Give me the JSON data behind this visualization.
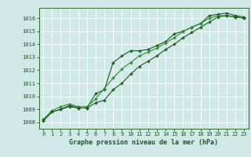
{
  "x": [
    0,
    1,
    2,
    3,
    4,
    5,
    6,
    7,
    8,
    9,
    10,
    11,
    12,
    13,
    14,
    15,
    16,
    17,
    18,
    19,
    20,
    21,
    22,
    23
  ],
  "line1": [
    1008.2,
    1008.8,
    1009.0,
    1009.3,
    1009.1,
    1009.1,
    1010.2,
    1010.5,
    1012.6,
    1013.1,
    1013.5,
    1013.5,
    1013.6,
    1013.9,
    1014.2,
    1014.8,
    1015.0,
    1015.3,
    1015.6,
    1016.2,
    1016.3,
    1016.4,
    1016.2,
    1016.1
  ],
  "line2": [
    1008.2,
    1008.9,
    1009.2,
    1009.4,
    1009.2,
    1009.2,
    1009.8,
    1010.6,
    1011.4,
    1012.1,
    1012.6,
    1013.1,
    1013.4,
    1013.7,
    1014.1,
    1014.5,
    1015.0,
    1015.3,
    1015.6,
    1016.0,
    1016.2,
    1016.2,
    1016.1,
    1016.0
  ],
  "line3": [
    1008.1,
    1008.8,
    1009.0,
    1009.2,
    1009.1,
    1009.1,
    1009.5,
    1009.7,
    1010.5,
    1011.0,
    1011.7,
    1012.3,
    1012.7,
    1013.1,
    1013.6,
    1014.0,
    1014.5,
    1014.9,
    1015.3,
    1015.7,
    1016.1,
    1016.2,
    1016.1,
    1016.0
  ],
  "line_color1": "#1a5c1a",
  "line_color2": "#2d8c2d",
  "line_color3": "#1a5c1a",
  "marker": "+",
  "xlim": [
    -0.5,
    23.5
  ],
  "ylim": [
    1007.5,
    1016.8
  ],
  "yticks": [
    1008,
    1009,
    1010,
    1011,
    1012,
    1013,
    1014,
    1015,
    1016
  ],
  "xticks": [
    0,
    1,
    2,
    3,
    4,
    5,
    6,
    7,
    8,
    9,
    10,
    11,
    12,
    13,
    14,
    15,
    16,
    17,
    18,
    19,
    20,
    21,
    22,
    23
  ],
  "xlabel": "Graphe pression niveau de la mer (hPa)",
  "bg_color": "#d0e8e8",
  "grid_color": "#ffffff",
  "line_width": 0.8,
  "marker_size": 3.5,
  "tick_fontsize": 5.0,
  "xlabel_fontsize": 6.0
}
